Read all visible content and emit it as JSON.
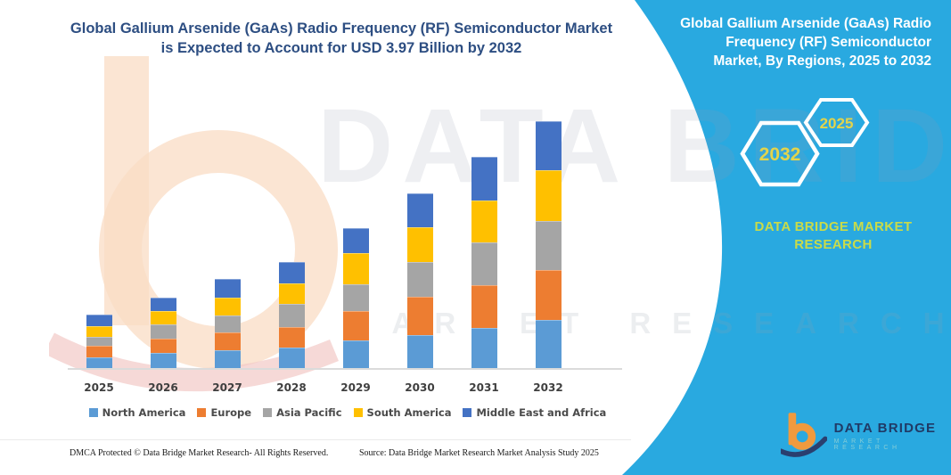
{
  "header": {
    "title": "Global Gallium Arsenide (GaAs) Radio Frequency (RF) Semiconductor Market\nis Expected to Account for USD 3.97 Billion by 2032"
  },
  "side_panel": {
    "title": "Global Gallium Arsenide (GaAs) Radio\nFrequency (RF) Semiconductor\nMarket, By Regions, 2025 to 2032",
    "hexagons": [
      {
        "label": "2032"
      },
      {
        "label": "2025"
      }
    ],
    "brand_text": "DATA BRIDGE MARKET\nRESEARCH",
    "accent_color": "#29A9E0",
    "hex_label_color": "#E3D44B"
  },
  "chart_data": {
    "type": "bar",
    "stacked": true,
    "unit": "USD Billion",
    "title": "Global Gallium Arsenide (GaAs) Radio Frequency (RF) Semiconductor Market, By Regions, 2025 to 2032",
    "categories": [
      "2025",
      "2026",
      "2027",
      "2028",
      "2029",
      "2030",
      "2031",
      "2032"
    ],
    "series": [
      {
        "name": "North America",
        "color": "#5B9BD5",
        "values": [
          0.17,
          0.24,
          0.29,
          0.33,
          0.45,
          0.53,
          0.65,
          0.78
        ]
      },
      {
        "name": "Europe",
        "color": "#ED7D31",
        "values": [
          0.19,
          0.23,
          0.29,
          0.33,
          0.47,
          0.62,
          0.69,
          0.79
        ]
      },
      {
        "name": "Asia Pacific",
        "color": "#A5A5A5",
        "values": [
          0.14,
          0.23,
          0.27,
          0.37,
          0.43,
          0.55,
          0.68,
          0.79
        ]
      },
      {
        "name": "South America",
        "color": "#FFC000",
        "values": [
          0.17,
          0.22,
          0.29,
          0.33,
          0.5,
          0.56,
          0.68,
          0.82
        ]
      },
      {
        "name": "Middle East and Africa",
        "color": "#4472C4",
        "values": [
          0.19,
          0.22,
          0.29,
          0.35,
          0.4,
          0.55,
          0.7,
          0.79
        ]
      }
    ],
    "totals_estimated": [
      0.86,
      1.14,
      1.43,
      1.71,
      2.26,
      2.8,
      3.39,
      3.97
    ],
    "xlabel": "",
    "ylabel": "",
    "ylim": [
      0,
      4.2
    ],
    "grid": false,
    "legend_position": "bottom"
  },
  "watermark": {
    "line1": "DATA BRIDGE",
    "line2": "MARKET RESEARCH"
  },
  "footer": {
    "dmca": "DMCA Protected © Data Bridge Market Research-  All Rights Reserved.",
    "source": "Source: Data Bridge Market Research  Market Analysis Study 2025"
  },
  "logo": {
    "name": "DATA BRIDGE",
    "subtext": "MARKET RESEARCH"
  }
}
